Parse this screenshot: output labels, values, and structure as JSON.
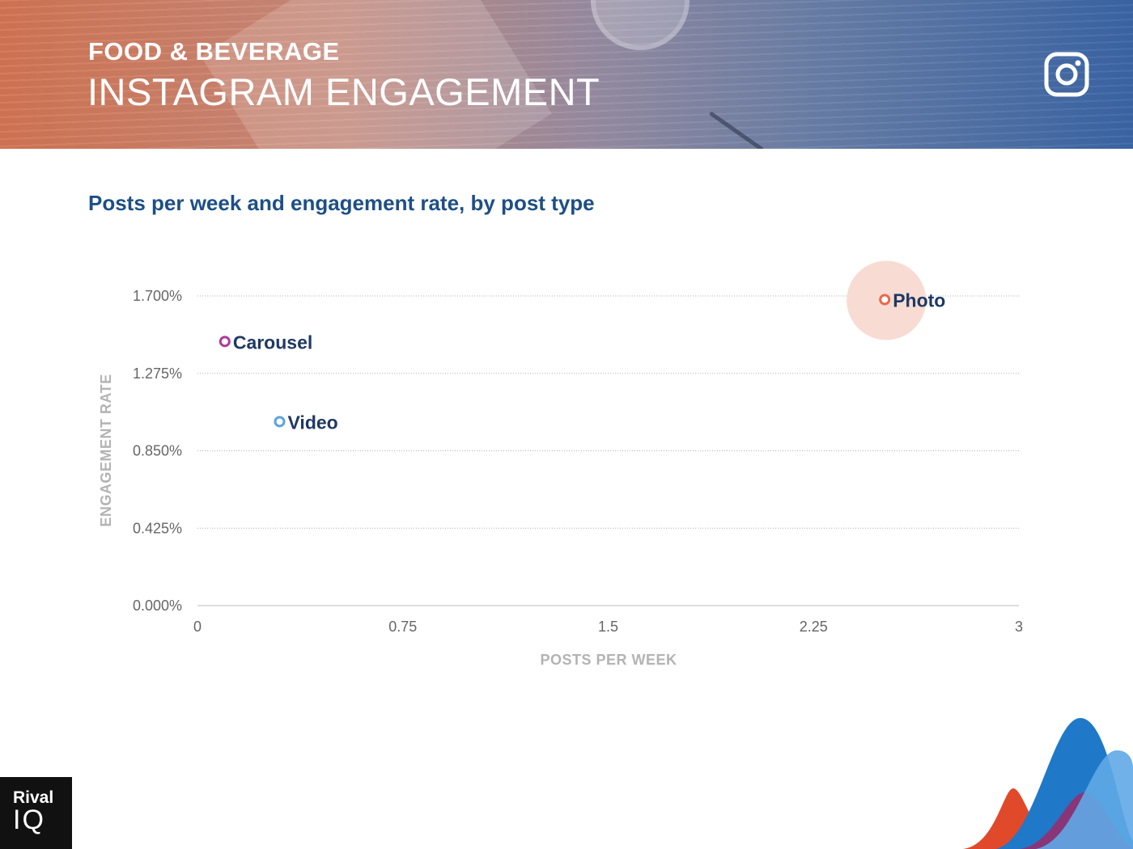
{
  "header": {
    "kicker": "FOOD & BEVERAGE",
    "headline": "INSTAGRAM ENGAGEMENT",
    "icon": "instagram-icon"
  },
  "brand": {
    "line1": "Rival",
    "line2": "IQ"
  },
  "colors": {
    "title": "#1d4f86",
    "photo": "#e8694a",
    "carousel": "#b0399a",
    "video": "#5aa3e0",
    "photo_bubble": "#f8dcd3",
    "axis_label": "#b3b3b3",
    "point_label": "#1f3864"
  },
  "chart_data": {
    "type": "scatter",
    "title": "Posts per week and engagement rate, by post type",
    "xlabel": "POSTS PER WEEK",
    "ylabel": "ENGAGEMENT RATE",
    "xlim": [
      0,
      3
    ],
    "ylim": [
      0,
      1.7
    ],
    "x_ticks": [
      "0",
      "0.75",
      "1.5",
      "2.25",
      "3"
    ],
    "y_ticks": [
      "0.000%",
      "0.425%",
      "0.850%",
      "1.275%",
      "1.700%"
    ],
    "gridlines": "horizontal dotted",
    "points": [
      {
        "label": "Photo",
        "x": 2.51,
        "y": 1.68,
        "highlight": true
      },
      {
        "label": "Carousel",
        "x": 0.1,
        "y": 1.45,
        "highlight": false
      },
      {
        "label": "Video",
        "x": 0.3,
        "y": 1.01,
        "highlight": false
      }
    ]
  }
}
